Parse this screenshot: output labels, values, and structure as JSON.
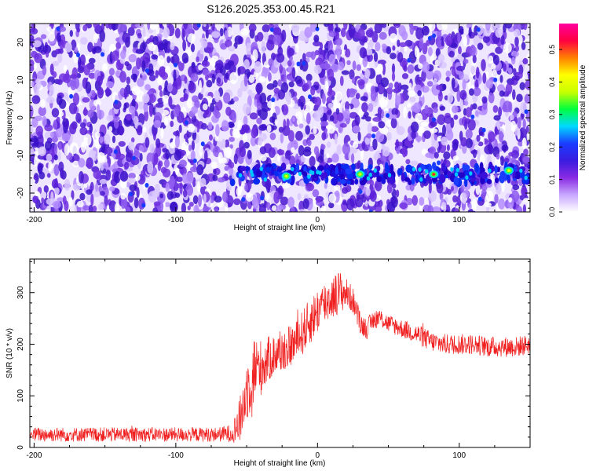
{
  "title": "S126.2025.353.00.45.R21",
  "chart_data": [
    {
      "type": "heatmap",
      "xlabel": "Height of straight line (km)",
      "ylabel": "Frequency (Hz)",
      "xlim": [
        -203,
        150
      ],
      "ylim": [
        -25,
        25
      ],
      "xticks": [
        -200,
        -100,
        0,
        100
      ],
      "xtick_labels": [
        "-200",
        "-100",
        "0",
        "100"
      ],
      "yticks": [
        -20,
        -10,
        0,
        10,
        20
      ],
      "ytick_labels": [
        "-20",
        "-10",
        "0",
        "10",
        "20"
      ],
      "colorbar": {
        "label": "Normalized spectral amplitude",
        "range": [
          0,
          0.58
        ],
        "ticks": [
          0,
          0.1,
          0.2,
          0.3,
          0.4,
          0.5
        ],
        "tick_labels": [
          "0.0",
          "0.1",
          "0.2",
          "0.3",
          "0.4",
          "0.5"
        ],
        "colors": [
          "#ffffff",
          "#c8a8ff",
          "#8a2be2",
          "#3a1ce0",
          "#1a3cff",
          "#00d8ff",
          "#00ff40",
          "#c8ff00",
          "#ffff00",
          "#ff8000",
          "#ff0040",
          "#ff00a0"
        ]
      },
      "signal_band": {
        "x_range": [
          -60,
          150
        ],
        "frequency_hz": -15,
        "peaks": [
          {
            "x": -22,
            "y": -15.5,
            "amplitude": 0.38
          },
          {
            "x": 30,
            "y": -15,
            "amplitude": 0.32
          },
          {
            "x": 82,
            "y": -15,
            "amplitude": 0.42
          },
          {
            "x": 135,
            "y": -14,
            "amplitude": 0.34
          }
        ]
      }
    },
    {
      "type": "line",
      "xlabel": "Height of straight line (km)",
      "ylabel": "SNR (10 * v/v)",
      "xlim": [
        -203,
        150
      ],
      "ylim": [
        0,
        365
      ],
      "xticks": [
        -200,
        -100,
        0,
        100
      ],
      "xtick_labels": [
        "-200",
        "-100",
        "0",
        "100"
      ],
      "yticks": [
        0,
        100,
        200,
        300
      ],
      "ytick_labels": [
        "0",
        "100",
        "200",
        "300"
      ],
      "color": "#f02020",
      "series": [
        {
          "name": "SNR",
          "x": [
            -203,
            -180,
            -150,
            -120,
            -90,
            -70,
            -60,
            -55,
            -50,
            -45,
            -40,
            -35,
            -30,
            -25,
            -20,
            -15,
            -10,
            -5,
            0,
            5,
            10,
            15,
            20,
            25,
            30,
            35,
            40,
            45,
            50,
            60,
            70,
            80,
            90,
            100,
            110,
            120,
            130,
            140,
            150
          ],
          "values": [
            25,
            25,
            25,
            25,
            25,
            25,
            28,
            50,
            110,
            150,
            155,
            170,
            180,
            185,
            195,
            205,
            225,
            245,
            265,
            280,
            290,
            300,
            300,
            285,
            240,
            230,
            250,
            250,
            240,
            230,
            220,
            205,
            200,
            200,
            200,
            195,
            195,
            195,
            200
          ],
          "noise": [
            14,
            14,
            14,
            14,
            14,
            14,
            18,
            45,
            60,
            70,
            55,
            45,
            40,
            40,
            40,
            40,
            45,
            45,
            45,
            45,
            40,
            45,
            30,
            25,
            22,
            20,
            20,
            18,
            18,
            18,
            20,
            20,
            20,
            20,
            20,
            20,
            20,
            20,
            20
          ]
        }
      ]
    }
  ]
}
